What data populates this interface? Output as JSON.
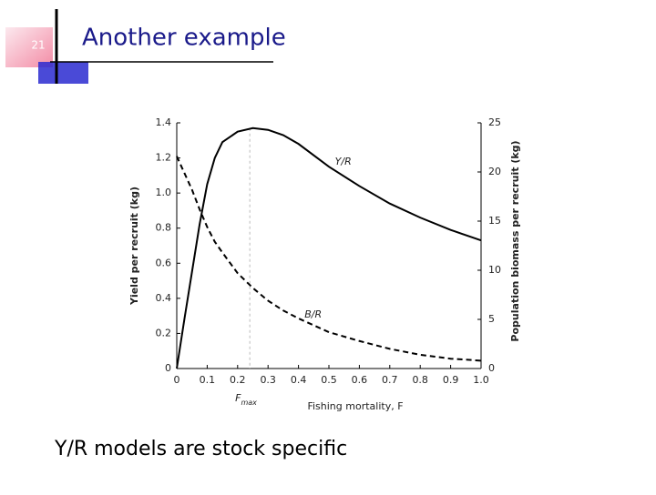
{
  "slide": {
    "number": "21",
    "title": "Another example",
    "caption": "Y/R models are stock specific"
  },
  "chart_data": {
    "type": "line",
    "x": [
      0,
      0.025,
      0.05,
      0.075,
      0.1,
      0.125,
      0.15,
      0.2,
      0.25,
      0.3,
      0.35,
      0.4,
      0.5,
      0.6,
      0.7,
      0.8,
      0.9,
      1.0
    ],
    "series": [
      {
        "name": "Y/R",
        "color": "#000000",
        "dash": false,
        "axis": "y",
        "values": [
          0,
          0.28,
          0.55,
          0.82,
          1.05,
          1.2,
          1.29,
          1.35,
          1.37,
          1.36,
          1.33,
          1.28,
          1.15,
          1.04,
          0.94,
          0.86,
          0.79,
          0.73
        ]
      },
      {
        "name": "B/R",
        "color": "#000000",
        "dash": true,
        "axis": "y2",
        "values": [
          21.6,
          19.9,
          18.2,
          16.2,
          14.4,
          12.9,
          11.8,
          9.7,
          8.2,
          6.9,
          5.9,
          5.1,
          3.7,
          2.8,
          2.0,
          1.4,
          1.0,
          0.8
        ]
      }
    ],
    "xlabel": "Fishing mortality, F",
    "ylabel": "Yield per recruit (kg)",
    "y2label": "Population biomass per recruit (kg)",
    "xlim": [
      0,
      1.0
    ],
    "xticks": [
      0,
      0.1,
      0.2,
      0.3,
      0.4,
      0.5,
      0.6,
      0.7,
      0.8,
      0.9,
      {
        "value": 1.0,
        "label": "1.0"
      }
    ],
    "ylim": [
      0,
      1.4
    ],
    "yticks": [
      0,
      0.2,
      0.4,
      0.6,
      0.8,
      {
        "value": 1.0,
        "label": "1.0"
      },
      1.2,
      1.4
    ],
    "y2lim": [
      0,
      25
    ],
    "y2ticks": [
      0,
      5,
      10,
      15,
      20,
      25
    ],
    "fmax": {
      "value": 0.24,
      "main": "F",
      "sub": "max"
    },
    "series_label_at": [
      0.52,
      0.42
    ]
  }
}
